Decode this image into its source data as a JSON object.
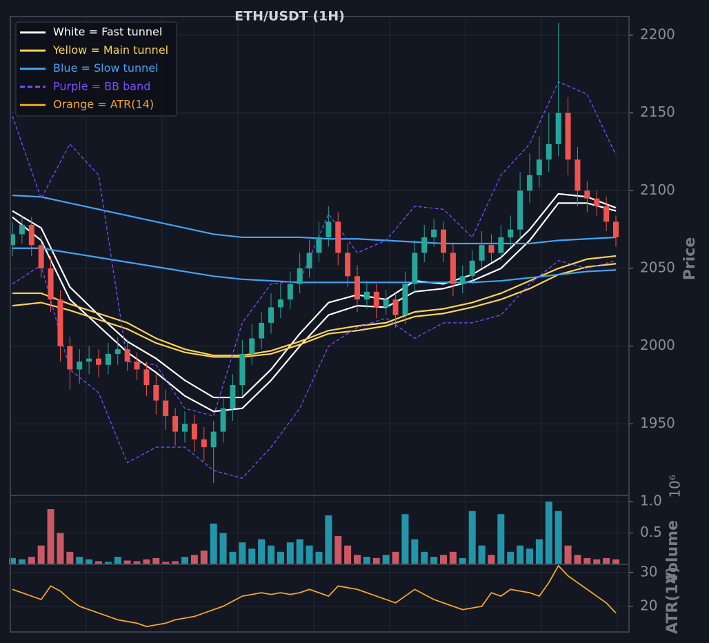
{
  "chart_data": [
    {
      "type": "candlestick",
      "title": "ETH/USDT (1H)",
      "y_label": "Price",
      "ylim": [
        1904,
        2212
      ],
      "yticks": [
        1950,
        2000,
        2050,
        2100,
        2150,
        2200
      ],
      "grid": true,
      "up_color": "#26a69a",
      "down_color": "#ef5350",
      "legend": "upper left",
      "open": [
        2065,
        2072,
        2078,
        2065,
        2050,
        2030,
        2000,
        1985,
        1990,
        1992,
        1988,
        1995,
        1998,
        1990,
        1985,
        1975,
        1965,
        1955,
        1945,
        1950,
        1940,
        1935,
        1945,
        1960,
        1975,
        1995,
        2005,
        2015,
        2025,
        2030,
        2040,
        2050,
        2060,
        2070,
        2080,
        2060,
        2045,
        2030,
        2035,
        2025,
        2030,
        2020,
        2040,
        2060,
        2070,
        2075,
        2060,
        2040,
        2045,
        2055,
        2065,
        2060,
        2070,
        2075,
        2100,
        2110,
        2120,
        2130,
        2150,
        2120,
        2100,
        2095,
        2090,
        2080
      ],
      "high": [
        2080,
        2084,
        2083,
        2071,
        2058,
        2036,
        2006,
        1998,
        2000,
        1998,
        2002,
        2006,
        2004,
        1996,
        1990,
        1982,
        1972,
        1960,
        1958,
        1956,
        1948,
        1952,
        1968,
        1982,
        2004,
        2014,
        2022,
        2034,
        2040,
        2048,
        2060,
        2068,
        2080,
        2090,
        2086,
        2066,
        2052,
        2042,
        2040,
        2036,
        2034,
        2048,
        2068,
        2078,
        2082,
        2080,
        2066,
        2052,
        2062,
        2074,
        2072,
        2078,
        2084,
        2112,
        2124,
        2135,
        2150,
        2208,
        2160,
        2128,
        2106,
        2100,
        2096,
        2084
      ],
      "low": [
        2058,
        2066,
        2058,
        2044,
        2022,
        1990,
        1972,
        1976,
        1982,
        1980,
        1982,
        1988,
        1984,
        1978,
        1968,
        1956,
        1946,
        1936,
        1938,
        1932,
        1926,
        1912,
        1938,
        1952,
        1968,
        1988,
        1998,
        2008,
        2018,
        2024,
        2034,
        2044,
        2054,
        2064,
        2052,
        2038,
        2022,
        2024,
        2018,
        2020,
        2012,
        2014,
        2034,
        2054,
        2064,
        2054,
        2032,
        2034,
        2040,
        2050,
        2054,
        2055,
        2064,
        2068,
        2092,
        2102,
        2112,
        2122,
        2110,
        2090,
        2086,
        2084,
        2074,
        2064
      ],
      "close": [
        2072,
        2078,
        2065,
        2050,
        2030,
        2000,
        1985,
        1990,
        1992,
        1988,
        1995,
        1998,
        1990,
        1985,
        1975,
        1965,
        1955,
        1945,
        1950,
        1940,
        1935,
        1945,
        1960,
        1975,
        1995,
        2005,
        2015,
        2025,
        2030,
        2040,
        2050,
        2060,
        2070,
        2080,
        2060,
        2045,
        2030,
        2035,
        2025,
        2030,
        2020,
        2040,
        2060,
        2070,
        2075,
        2060,
        2040,
        2045,
        2055,
        2065,
        2060,
        2070,
        2075,
        2100,
        2110,
        2120,
        2130,
        2150,
        2120,
        2100,
        2095,
        2090,
        2080,
        2070
      ],
      "overlays": [
        {
          "name": "White = Fast tunnel",
          "color": "#ffffff",
          "style": "solid",
          "x": [
            0,
            3,
            6,
            9,
            12,
            15,
            18,
            21,
            24,
            27,
            30,
            33,
            36,
            39,
            42,
            45,
            48,
            51,
            54,
            57,
            60,
            63
          ],
          "upper": [
            2087,
            2076,
            2038,
            2020,
            2003,
            1992,
            1978,
            1967,
            1967,
            1985,
            2008,
            2028,
            2033,
            2030,
            2042,
            2040,
            2046,
            2057,
            2075,
            2098,
            2096,
            2089
          ],
          "lower": [
            2083,
            2068,
            2030,
            2013,
            1996,
            1983,
            1968,
            1958,
            1960,
            1978,
            2000,
            2020,
            2026,
            2025,
            2035,
            2037,
            2042,
            2050,
            2068,
            2092,
            2092,
            2087
          ]
        },
        {
          "name": "Yellow = Main tunnel",
          "color": "#fdd451",
          "style": "solid",
          "x": [
            0,
            3,
            6,
            9,
            12,
            15,
            18,
            21,
            24,
            27,
            30,
            33,
            36,
            39,
            42,
            45,
            48,
            51,
            54,
            57,
            60,
            63
          ],
          "upper": [
            2034,
            2034,
            2027,
            2021,
            2015,
            2005,
            1998,
            1994,
            1994,
            1997,
            2003,
            2010,
            2013,
            2015,
            2022,
            2024,
            2028,
            2034,
            2042,
            2050,
            2056,
            2058
          ],
          "lower": [
            2026,
            2028,
            2023,
            2017,
            2011,
            2002,
            1996,
            1993,
            1993,
            1995,
            2001,
            2008,
            2010,
            2013,
            2019,
            2021,
            2025,
            2030,
            2037,
            2046,
            2051,
            2053
          ]
        },
        {
          "name": "Blue = Slow tunnel",
          "color": "#42a5f5",
          "style": "solid",
          "x": [
            0,
            3,
            6,
            9,
            12,
            15,
            18,
            21,
            24,
            27,
            30,
            33,
            36,
            39,
            42,
            45,
            48,
            51,
            54,
            57,
            60,
            63
          ],
          "upper": [
            2097,
            2096,
            2092,
            2088,
            2084,
            2080,
            2076,
            2072,
            2070,
            2070,
            2070,
            2069,
            2069,
            2068,
            2067,
            2066,
            2066,
            2066,
            2066,
            2068,
            2069,
            2070
          ],
          "lower": [
            2063,
            2063,
            2060,
            2057,
            2054,
            2051,
            2048,
            2045,
            2043,
            2042,
            2041,
            2041,
            2041,
            2041,
            2041,
            2041,
            2041,
            2042,
            2044,
            2046,
            2048,
            2049
          ]
        },
        {
          "name": "Purple = BB band",
          "color": "#7c4dff",
          "style": "dashed",
          "x": [
            0,
            3,
            6,
            9,
            12,
            15,
            18,
            21,
            24,
            27,
            30,
            33,
            36,
            39,
            42,
            45,
            48,
            51,
            54,
            57,
            60,
            63
          ],
          "upper": [
            2148,
            2095,
            2130,
            2110,
            1990,
            1988,
            1960,
            1955,
            2015,
            2040,
            2042,
            2085,
            2060,
            2068,
            2090,
            2088,
            2070,
            2110,
            2130,
            2170,
            2162,
            2123
          ],
          "lower": [
            2040,
            2052,
            1985,
            1970,
            1925,
            1935,
            1935,
            1920,
            1915,
            1935,
            1960,
            2000,
            2012,
            2018,
            2005,
            2015,
            2015,
            2020,
            2040,
            2055,
            2050,
            2055
          ]
        }
      ]
    },
    {
      "type": "bar",
      "y_label": "Volume",
      "offset_label": "10⁶",
      "ylim": [
        0,
        1.1
      ],
      "yticks": [
        0.5,
        {
          "value": 1,
          "label": "1.0"
        }
      ],
      "grid": true,
      "up_color": "#26a3b8",
      "down_color": "#e0606c",
      "values": [
        0.1,
        0.08,
        0.12,
        0.3,
        0.88,
        0.5,
        0.2,
        0.12,
        0.08,
        0.05,
        0.04,
        0.12,
        0.06,
        0.05,
        0.08,
        0.1,
        0.04,
        0.05,
        0.12,
        0.15,
        0.22,
        0.65,
        0.5,
        0.2,
        0.35,
        0.25,
        0.4,
        0.3,
        0.2,
        0.35,
        0.4,
        0.3,
        0.2,
        0.78,
        0.45,
        0.3,
        0.15,
        0.12,
        0.1,
        0.15,
        0.2,
        0.8,
        0.4,
        0.2,
        0.12,
        0.15,
        0.2,
        0.1,
        0.85,
        0.3,
        0.15,
        0.8,
        0.2,
        0.3,
        0.25,
        0.4,
        1.0,
        0.85,
        0.3,
        0.15,
        0.1,
        0.08,
        0.1,
        0.08
      ]
    },
    {
      "type": "line",
      "y_label": "ATR(14)",
      "ylim": [
        12.4,
        32.4
      ],
      "yticks": [
        20,
        30
      ],
      "grid": true,
      "series": [
        {
          "name": "Orange = ATR(14)",
          "color": "#f5a623",
          "values": [
            25,
            24,
            23,
            22,
            26,
            24.5,
            22,
            20,
            19,
            18,
            17,
            16,
            15.5,
            15,
            14,
            14.5,
            15,
            16,
            16.5,
            17,
            18,
            19,
            20,
            21.5,
            23,
            23.5,
            24,
            23.5,
            24,
            23.5,
            24,
            25,
            24,
            23,
            26,
            25.5,
            25,
            24,
            23,
            22,
            21,
            23,
            25,
            23.5,
            22,
            21,
            20,
            19,
            19.5,
            20,
            24,
            23,
            25,
            24.5,
            24,
            23,
            27,
            32,
            29,
            27,
            25,
            23,
            21,
            18
          ]
        }
      ]
    }
  ]
}
